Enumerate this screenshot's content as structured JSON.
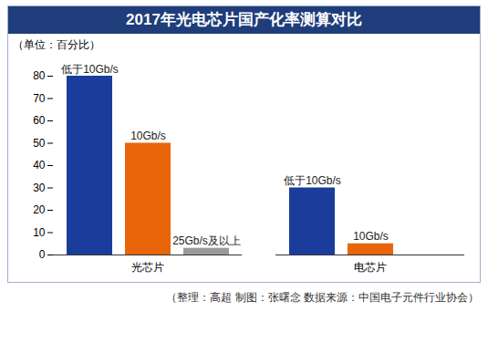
{
  "chart_data": {
    "type": "bar",
    "title": "2017年光电芯片国产化率测算对比",
    "ylabel": "（单位：百分比）",
    "caption": "（整理：高超 制图：张曙念 数据来源：中国电子元件行业协会）",
    "categories": [
      "光芯片",
      "电芯片"
    ],
    "series": [
      {
        "name": "低于10Gb/s",
        "color": "#1a3d9c",
        "values": [
          80,
          30
        ]
      },
      {
        "name": "10Gb/s",
        "color": "#e8650a",
        "values": [
          50,
          5
        ]
      },
      {
        "name": "25Gb/s及以上",
        "color": "#9a9a9a",
        "values": [
          3,
          null
        ]
      }
    ],
    "ylim": [
      0,
      80
    ],
    "yticks": [
      0,
      10,
      20,
      30,
      40,
      50,
      60,
      70,
      80
    ],
    "grid": false
  }
}
